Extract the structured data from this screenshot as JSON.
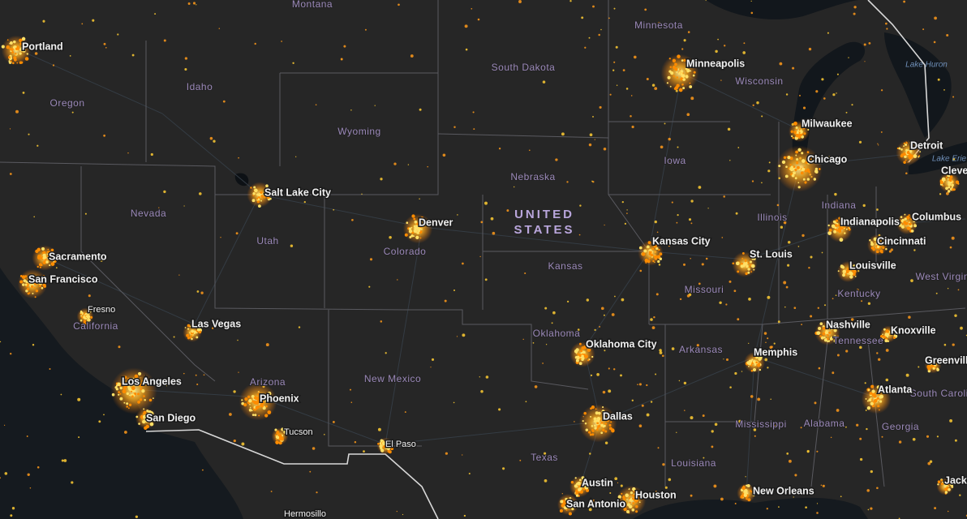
{
  "map": {
    "country": [
      "UNITED",
      "STATES"
    ],
    "cities": [
      "Portland",
      "Salt Lake City",
      "Sacramento",
      "San Francisco",
      "Fresno",
      "Las Vegas",
      "Los Angeles",
      "San Diego",
      "Phoenix",
      "Tucson",
      "El Paso",
      "Hermosillo",
      "Denver",
      "Kansas City",
      "Oklahoma City",
      "Dallas",
      "Austin",
      "San Antonio",
      "Houston",
      "Minneapolis",
      "Milwaukee",
      "Chicago",
      "Detroit",
      "Cleveland",
      "Indianapolis",
      "Columbus",
      "Cincinnati",
      "Louisville",
      "St. Louis",
      "Nashville",
      "Knoxville",
      "Memphis",
      "Atlanta",
      "New Orleans",
      "Jackson",
      "Greenville"
    ],
    "states": [
      "Montana",
      "Idaho",
      "Oregon",
      "Wyoming",
      "South Dakota",
      "Minnesota",
      "Wisconsin",
      "Nevada",
      "Utah",
      "Colorado",
      "Nebraska",
      "Iowa",
      "Illinois",
      "Indiana",
      "Kansas",
      "Missouri",
      "Kentucky",
      "West Virginia",
      "Tennessee",
      "Oklahoma",
      "Arkansas",
      "California",
      "Arizona",
      "New Mexico",
      "Texas",
      "Louisiana",
      "Mississippi",
      "Alabama",
      "Georgia",
      "South Carolina"
    ],
    "lakes": [
      "Lake Huron",
      "Lake Erie"
    ]
  }
}
